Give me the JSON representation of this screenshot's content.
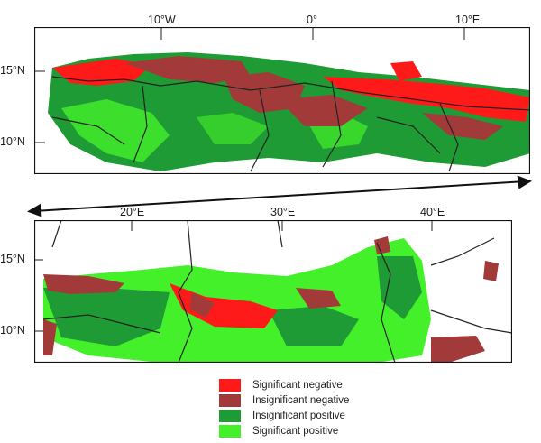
{
  "top_map": {
    "lon_ticks": [
      "10°W",
      "0°",
      "10°E"
    ],
    "lat_ticks": [
      "15°N",
      "10°N"
    ]
  },
  "bottom_map": {
    "lon_ticks": [
      "20°E",
      "30°E",
      "40°E"
    ],
    "lat_ticks": [
      "15°N",
      "10°N"
    ]
  },
  "legend": {
    "items": [
      {
        "label": "Significant negative",
        "color": "#ff1a1a"
      },
      {
        "label": "Insignificant negative",
        "color": "#a33a3a"
      },
      {
        "label": "Insignificant positive",
        "color": "#1e9b34"
      },
      {
        "label": "Significant positive",
        "color": "#44f02a"
      }
    ]
  }
}
